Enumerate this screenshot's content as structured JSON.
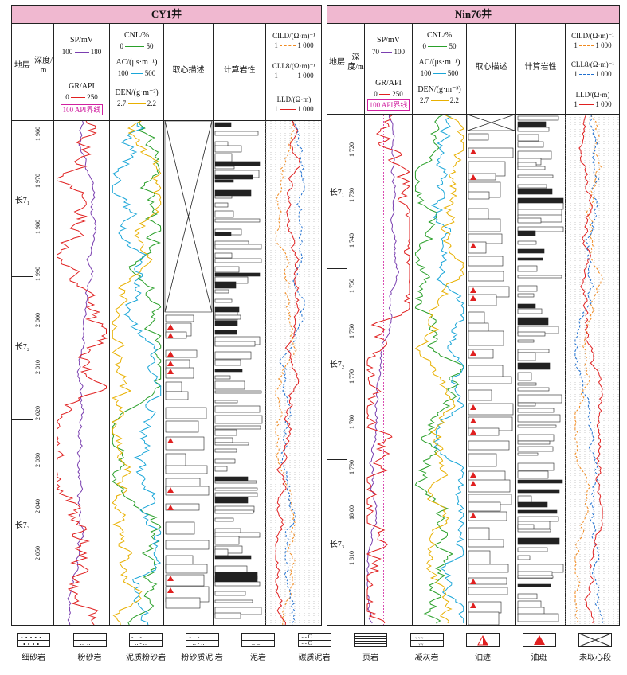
{
  "wells": [
    {
      "name": "CY1井",
      "headers": {
        "strata": "地层",
        "depth": "深度/m",
        "sp": "SP/mV",
        "sp_range": [
          "100",
          "180"
        ],
        "gr": "GR/API",
        "gr_range": [
          "0",
          "250"
        ],
        "gr_marker": "100 API界线",
        "cnl": "CNL/%",
        "cnl_range": [
          "0",
          "50"
        ],
        "ac": "AC/(μs·m⁻¹)",
        "ac_range": [
          "100",
          "500"
        ],
        "den": "DEN/(g·m⁻³)",
        "den_range": [
          "2.7",
          "2.2"
        ],
        "core": "取心描述",
        "lith": "计算岩性",
        "cild": "CILD/(Ω·m)⁻¹",
        "cild_range": [
          "1",
          "1 000"
        ],
        "cll8": "CLL8/(Ω·m)⁻¹",
        "cll8_range": [
          "1",
          "1 000"
        ],
        "lld": "LLD/(Ω·m)",
        "lld_range": [
          "1",
          "1 000"
        ]
      },
      "depth_ticks": [
        "1 960",
        "1 970",
        "1 980",
        "1 990",
        "2 000",
        "2 010",
        "2 020",
        "2 030",
        "2 040",
        "2 050"
      ],
      "strata_labels": [
        "长7₁",
        "长7₂",
        "长7₃"
      ]
    },
    {
      "name": "Nin76井",
      "headers": {
        "strata": "地层",
        "depth": "深度/m",
        "sp": "SP/mV",
        "sp_range": [
          "70",
          "100"
        ],
        "gr": "GR/API",
        "gr_range": [
          "0",
          "250"
        ],
        "gr_marker": "100 API界线",
        "cnl": "CNL/%",
        "cnl_range": [
          "0",
          "50"
        ],
        "ac": "AC/(μs·m⁻¹)",
        "ac_range": [
          "100",
          "500"
        ],
        "den": "DEN/(g·m⁻³)",
        "den_range": [
          "2.7",
          "2.2"
        ],
        "core": "取心描述",
        "lith": "计算岩性",
        "cild": "CILD/(Ω·m)⁻¹",
        "cild_range": [
          "1",
          "1 000"
        ],
        "cll8": "CLL8/(Ω·m)⁻¹",
        "cll8_range": [
          "1",
          "1 000"
        ],
        "lld": "LLD/(Ω·m)",
        "lld_range": [
          "1",
          "1 000"
        ]
      },
      "depth_ticks": [
        "1 720",
        "1 730",
        "1 740",
        "1 750",
        "1 760",
        "1 770",
        "1 780",
        "1 790",
        "18 00",
        "1 810"
      ],
      "strata_labels": [
        "长7₁",
        "长7₂",
        "长7₃"
      ]
    }
  ],
  "legend": [
    {
      "label": "细砂岩",
      "icon": "fine-sandstone"
    },
    {
      "label": "粉砂岩",
      "icon": "siltstone"
    },
    {
      "label": "泥质粉砂岩",
      "icon": "argillaceous-siltstone"
    },
    {
      "label": "粉砂质泥 岩",
      "icon": "silty-mudstone"
    },
    {
      "label": "泥岩",
      "icon": "mudstone"
    },
    {
      "label": "碳质泥岩",
      "icon": "carbonaceous-mudstone"
    },
    {
      "label": "页岩",
      "icon": "shale"
    },
    {
      "label": "凝灰岩",
      "icon": "tuff"
    },
    {
      "label": "油迹",
      "icon": "oil-trace"
    },
    {
      "label": "油斑",
      "icon": "oil-spot"
    },
    {
      "label": "未取心段",
      "icon": "no-core"
    }
  ],
  "colors": {
    "title_bg": "#f0b8d0",
    "sp": "#7a3fb0",
    "gr": "#e02020",
    "cnl": "#2aa02a",
    "ac": "#1aa6d8",
    "den": "#e8b000",
    "cild": "#f08a20",
    "cll8": "#2070d0",
    "lld": "#e02020",
    "oil": "#e02020"
  }
}
